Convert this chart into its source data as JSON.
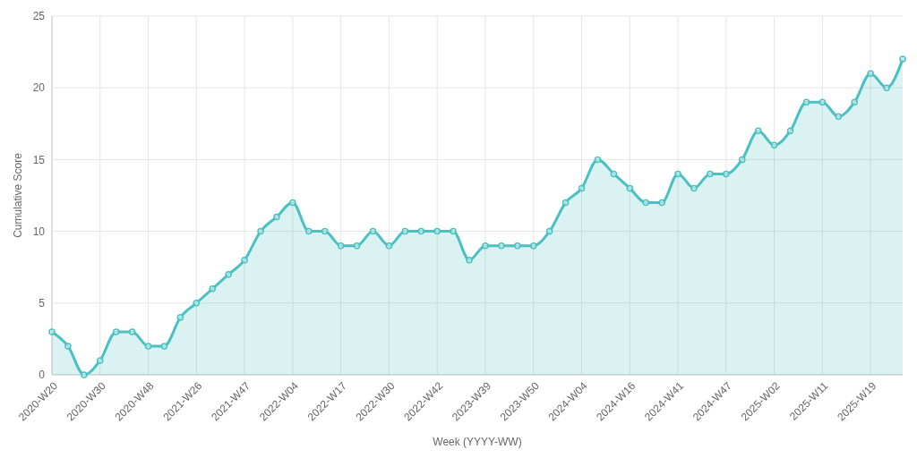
{
  "chart_data": {
    "type": "area",
    "xlabel": "Week (YYYY-WW)",
    "ylabel": "Cumulative Score",
    "categories": [
      "2020-W20",
      null,
      null,
      "2020-W30",
      null,
      null,
      "2020-W48",
      null,
      null,
      "2021-W26",
      null,
      null,
      "2021-W47",
      null,
      null,
      "2022-W04",
      null,
      null,
      "2022-W17",
      null,
      null,
      "2022-W30",
      null,
      null,
      "2022-W42",
      null,
      null,
      "2023-W39",
      null,
      null,
      "2023-W50",
      null,
      null,
      "2024-W04",
      null,
      null,
      "2024-W16",
      null,
      null,
      "2024-W41",
      null,
      null,
      "2024-W47",
      null,
      null,
      "2025-W02",
      null,
      null,
      "2025-W11",
      null,
      null,
      "2025-W19",
      null,
      null
    ],
    "series": [
      {
        "color": "#4bc0c0",
        "values": [
          3,
          2,
          0,
          1,
          3,
          3,
          2,
          2,
          4,
          5,
          6,
          7,
          8,
          10,
          11,
          12,
          10,
          10,
          9,
          9,
          10,
          9,
          10,
          10,
          10,
          10,
          8,
          9,
          9,
          9,
          9,
          10,
          12,
          13,
          15,
          14,
          13,
          12,
          12,
          14,
          13,
          14,
          14,
          15,
          17,
          16,
          17,
          19,
          19,
          18,
          19,
          21,
          20,
          22
        ]
      }
    ],
    "ylim": [
      0,
      25
    ],
    "yticks": [
      0,
      5,
      10,
      15,
      20,
      25
    ],
    "grid": true,
    "marker": "circle",
    "line_style": "solid"
  }
}
